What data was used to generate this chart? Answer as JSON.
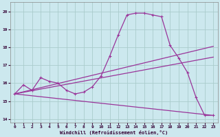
{
  "xlabel": "Windchill (Refroidissement éolien,°C)",
  "background_color": "#cce8ee",
  "grid_color": "#aacccc",
  "line_color": "#993399",
  "xlim": [
    -0.5,
    23.5
  ],
  "ylim": [
    13.8,
    20.5
  ],
  "yticks": [
    14,
    15,
    16,
    17,
    18,
    19,
    20
  ],
  "xticks": [
    0,
    1,
    2,
    3,
    4,
    5,
    6,
    7,
    8,
    9,
    10,
    11,
    12,
    13,
    14,
    15,
    16,
    17,
    18,
    19,
    20,
    21,
    22,
    23
  ],
  "series1_x": [
    0,
    1,
    2,
    3,
    4,
    5,
    6,
    7,
    8,
    9,
    10,
    11,
    12,
    13,
    14,
    15,
    16,
    17,
    18,
    19,
    20,
    21,
    22,
    23
  ],
  "series1_y": [
    15.4,
    15.9,
    15.6,
    16.3,
    16.1,
    16.0,
    15.6,
    15.4,
    15.5,
    15.8,
    16.4,
    17.5,
    18.7,
    19.8,
    19.9,
    19.9,
    19.8,
    19.7,
    18.1,
    17.4,
    16.6,
    15.2,
    14.2,
    14.2
  ],
  "trend1_x": [
    0,
    23
  ],
  "trend1_y": [
    15.4,
    18.05
  ],
  "trend2_x": [
    0,
    23
  ],
  "trend2_y": [
    15.4,
    17.45
  ],
  "trend3_x": [
    0,
    23
  ],
  "trend3_y": [
    15.4,
    14.2
  ]
}
